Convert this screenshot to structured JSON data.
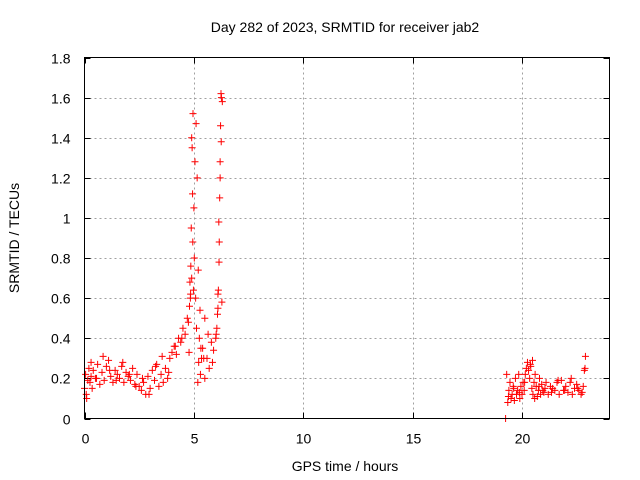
{
  "chart_data": {
    "type": "scatter",
    "title": "Day 282 of 2023, SRMTID for receiver jab2",
    "xlabel": "GPS time / hours",
    "ylabel": "SRMTID / TECUs",
    "xlim": [
      0,
      24
    ],
    "ylim": [
      0,
      1.8
    ],
    "xticks": [
      0,
      5,
      10,
      15,
      20
    ],
    "yticks": [
      0,
      0.2,
      0.4,
      0.6,
      0.8,
      1,
      1.2,
      1.4,
      1.6,
      1.8
    ],
    "xtick_labels": [
      "0",
      "5",
      "10",
      "15",
      "20"
    ],
    "ytick_labels": [
      "0",
      "0.2",
      "0.4",
      "0.6",
      "0.8",
      "1",
      "1.2",
      "1.4",
      "1.6",
      "1.8"
    ],
    "grid": true,
    "marker": "+",
    "color": "#ff0000",
    "series": [
      {
        "name": "jab2",
        "x": [
          0.0,
          0.05,
          0.1,
          0.15,
          0.2,
          0.25,
          0.3,
          0.35,
          0.4,
          0.5,
          0.6,
          0.7,
          0.8,
          0.9,
          1.0,
          1.1,
          1.2,
          1.3,
          1.4,
          1.5,
          1.6,
          1.7,
          1.8,
          1.9,
          2.0,
          2.1,
          2.2,
          2.3,
          2.4,
          2.5,
          2.6,
          2.7,
          2.8,
          2.9,
          3.0,
          3.1,
          3.2,
          3.3,
          3.4,
          3.5,
          3.6,
          3.7,
          3.8,
          3.9,
          4.0,
          4.1,
          4.2,
          4.3,
          4.4,
          4.5,
          4.6,
          4.7,
          4.8,
          4.85,
          4.9,
          4.95,
          5.0,
          5.05,
          5.1,
          5.15,
          5.2,
          5.25,
          5.3,
          5.35,
          5.4,
          5.5,
          5.6,
          5.7,
          5.8,
          5.9,
          6.0,
          6.05,
          6.1,
          6.15,
          6.2,
          6.25,
          6.3,
          0.08,
          0.3,
          0.55,
          0.85,
          1.15,
          1.45,
          1.75,
          2.05,
          2.35,
          2.65,
          2.95,
          3.25,
          3.55,
          3.85,
          4.15,
          4.45,
          4.75,
          4.82,
          4.88,
          4.92,
          4.96,
          5.02,
          5.08,
          5.18,
          5.28,
          5.45,
          5.65,
          5.85,
          6.02,
          6.08,
          6.12,
          6.16,
          6.18,
          6.22,
          6.26,
          4.78,
          4.84,
          4.86,
          4.9,
          4.94,
          4.98,
          5.12,
          5.22,
          5.32,
          5.5,
          6.1,
          6.14,
          6.2,
          6.24,
          6.28,
          19.3,
          19.35,
          19.4,
          19.45,
          19.5,
          19.55,
          19.6,
          19.65,
          19.7,
          19.75,
          19.8,
          19.85,
          19.9,
          19.95,
          20.0,
          20.05,
          20.1,
          20.15,
          20.2,
          20.25,
          20.3,
          20.35,
          20.4,
          20.45,
          20.5,
          20.55,
          20.6,
          20.65,
          20.7,
          20.75,
          20.8,
          20.85,
          20.9,
          20.95,
          21.0,
          21.1,
          21.2,
          21.3,
          21.4,
          21.5,
          21.6,
          21.7,
          21.8,
          21.9,
          22.0,
          22.1,
          22.2,
          22.3,
          22.4,
          22.5,
          22.6,
          22.7,
          22.8,
          22.85,
          22.9,
          19.38,
          19.62,
          19.88,
          20.12,
          20.38,
          20.48,
          20.58,
          20.78,
          21.05,
          21.35,
          21.65,
          21.95,
          22.25,
          22.55,
          22.75,
          22.88,
          19.25
        ],
        "y": [
          0.15,
          0.22,
          0.1,
          0.19,
          0.25,
          0.18,
          0.21,
          0.15,
          0.24,
          0.2,
          0.27,
          0.17,
          0.23,
          0.19,
          0.26,
          0.29,
          0.21,
          0.18,
          0.24,
          0.22,
          0.2,
          0.26,
          0.18,
          0.23,
          0.21,
          0.19,
          0.25,
          0.17,
          0.22,
          0.16,
          0.14,
          0.18,
          0.12,
          0.21,
          0.15,
          0.24,
          0.19,
          0.27,
          0.16,
          0.22,
          0.18,
          0.25,
          0.2,
          0.3,
          0.33,
          0.36,
          0.32,
          0.4,
          0.38,
          0.45,
          0.42,
          0.5,
          0.56,
          0.62,
          0.7,
          0.88,
          1.05,
          1.28,
          1.47,
          1.2,
          0.74,
          0.4,
          0.22,
          0.3,
          0.35,
          0.5,
          0.3,
          0.25,
          0.38,
          0.34,
          0.4,
          0.45,
          0.55,
          0.78,
          1.2,
          1.38,
          1.58,
          0.12,
          0.28,
          0.2,
          0.31,
          0.24,
          0.19,
          0.28,
          0.22,
          0.16,
          0.2,
          0.12,
          0.26,
          0.31,
          0.23,
          0.36,
          0.4,
          0.48,
          0.68,
          0.95,
          1.35,
          1.52,
          0.8,
          0.6,
          0.18,
          0.54,
          0.3,
          0.42,
          0.28,
          0.42,
          0.52,
          0.64,
          0.88,
          1.1,
          1.46,
          1.6,
          0.33,
          0.6,
          0.76,
          1.4,
          1.12,
          0.64,
          0.45,
          0.28,
          0.35,
          0.2,
          0.62,
          0.98,
          1.28,
          1.62,
          0.58,
          0.22,
          0.08,
          0.14,
          0.18,
          0.1,
          0.12,
          0.16,
          0.09,
          0.2,
          0.12,
          0.14,
          0.22,
          0.1,
          0.16,
          0.12,
          0.18,
          0.14,
          0.22,
          0.25,
          0.28,
          0.24,
          0.2,
          0.26,
          0.15,
          0.12,
          0.18,
          0.22,
          0.16,
          0.11,
          0.14,
          0.2,
          0.12,
          0.17,
          0.14,
          0.13,
          0.18,
          0.12,
          0.16,
          0.15,
          0.14,
          0.18,
          0.12,
          0.19,
          0.14,
          0.16,
          0.13,
          0.18,
          0.12,
          0.15,
          0.17,
          0.14,
          0.12,
          0.16,
          0.24,
          0.31,
          0.11,
          0.15,
          0.13,
          0.18,
          0.27,
          0.29,
          0.1,
          0.16,
          0.15,
          0.13,
          0.19,
          0.14,
          0.2,
          0.15,
          0.13,
          0.25,
          0.0
        ]
      }
    ]
  }
}
